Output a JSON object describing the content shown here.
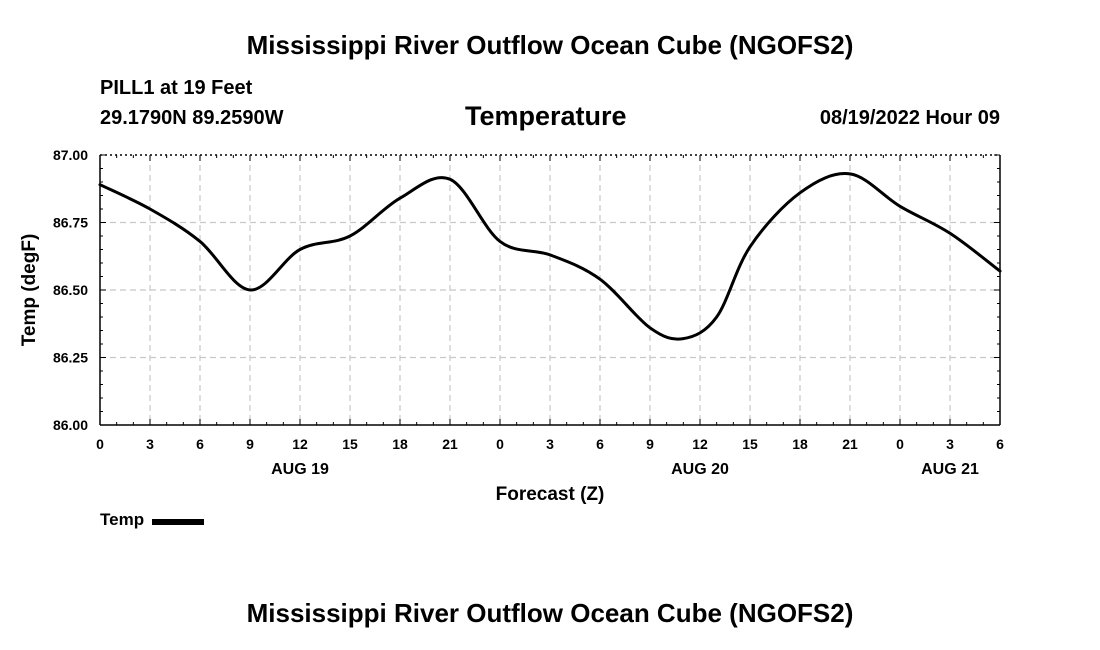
{
  "header": {
    "main_title": "Mississippi River Outflow Ocean Cube (NGOFS2)",
    "station": "PILL1 at 19 Feet",
    "coords": "29.1790N  89.2590W",
    "chart_title": "Temperature",
    "datetime": "08/19/2022 Hour 09"
  },
  "footer": {
    "title": "Mississippi River Outflow Ocean Cube (NGOFS2)"
  },
  "legend": {
    "label": "Temp"
  },
  "chart_data": {
    "type": "line",
    "title": "Temperature",
    "xlabel": "Forecast (Z)",
    "ylabel": "Temp (degF)",
    "ylim": [
      86.0,
      87.0
    ],
    "xlim": [
      0,
      54
    ],
    "y_ticks": [
      "86.00",
      "86.25",
      "86.50",
      "86.75",
      "87.00"
    ],
    "y_tick_values": [
      86.0,
      86.25,
      86.5,
      86.75,
      87.0
    ],
    "x_tick_hours": [
      0,
      3,
      6,
      9,
      12,
      15,
      18,
      21,
      24,
      27,
      30,
      33,
      36,
      39,
      42,
      45,
      48,
      51,
      54
    ],
    "x_tick_labels": [
      "0",
      "3",
      "6",
      "9",
      "12",
      "15",
      "18",
      "21",
      "0",
      "3",
      "6",
      "9",
      "12",
      "15",
      "18",
      "21",
      "0",
      "3",
      "6"
    ],
    "day_labels": [
      {
        "hour": 12,
        "label": "AUG 19"
      },
      {
        "hour": 36,
        "label": "AUG 20"
      },
      {
        "hour": 51,
        "label": "AUG 21"
      }
    ],
    "grid": true,
    "series": [
      {
        "name": "Temp",
        "color": "#000000",
        "x": [
          0,
          3,
          6,
          9,
          12,
          15,
          18,
          21,
          24,
          27,
          30,
          33,
          35,
          37,
          39,
          42,
          45,
          48,
          51,
          54
        ],
        "values": [
          86.89,
          86.8,
          86.68,
          86.5,
          86.65,
          86.7,
          86.84,
          86.91,
          86.68,
          86.63,
          86.54,
          86.36,
          86.32,
          86.4,
          86.66,
          86.86,
          86.93,
          86.81,
          86.71,
          86.57
        ]
      }
    ]
  }
}
